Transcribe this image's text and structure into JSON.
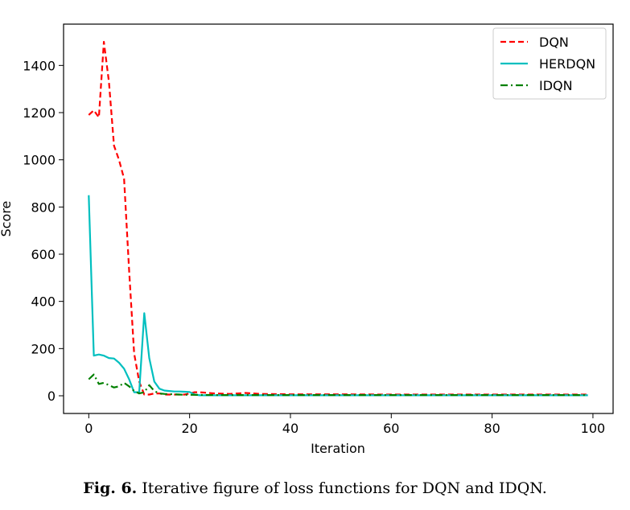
{
  "caption": {
    "label": "Fig. 6.",
    "text": "Iterative figure of loss functions for DQN and IDQN."
  },
  "chart_data": {
    "type": "line",
    "title": "",
    "xlabel": "Iteration",
    "ylabel": "Score",
    "xlim": [
      -5,
      104
    ],
    "ylim": [
      -75,
      1575
    ],
    "xticks": [
      0,
      20,
      40,
      60,
      80,
      100
    ],
    "yticks": [
      0,
      200,
      400,
      600,
      800,
      1000,
      1200,
      1400
    ],
    "grid": false,
    "legend_position": "top-right",
    "series": [
      {
        "name": "DQN",
        "color": "#ff0000",
        "style": "dashed",
        "x": [
          0,
          1,
          2,
          3,
          4,
          5,
          6,
          7,
          8,
          9,
          10,
          11,
          12,
          13,
          14,
          15,
          16,
          17,
          18,
          19,
          20,
          21,
          22,
          25,
          28,
          31,
          34,
          40,
          50,
          60,
          70,
          80,
          90,
          99
        ],
        "y": [
          1190,
          1210,
          1180,
          1500,
          1330,
          1060,
          1000,
          920,
          530,
          180,
          60,
          5,
          5,
          10,
          10,
          5,
          5,
          5,
          5,
          5,
          10,
          15,
          15,
          10,
          8,
          12,
          8,
          6,
          6,
          5,
          5,
          5,
          5,
          5
        ]
      },
      {
        "name": "HERDQN",
        "color": "#00bfbf",
        "style": "solid",
        "x": [
          0,
          1,
          2,
          3,
          4,
          5,
          6,
          7,
          8,
          9,
          10,
          11,
          12,
          13,
          14,
          15,
          16,
          17,
          18,
          19,
          20,
          21,
          22,
          30,
          40,
          50,
          60,
          70,
          80,
          90,
          99
        ],
        "y": [
          850,
          170,
          175,
          170,
          160,
          158,
          140,
          115,
          70,
          15,
          15,
          350,
          160,
          60,
          30,
          22,
          20,
          18,
          18,
          17,
          16,
          5,
          2,
          2,
          2,
          2,
          2,
          2,
          2,
          2,
          2
        ]
      },
      {
        "name": "IDQN",
        "color": "#008000",
        "style": "dashdot",
        "x": [
          0,
          1,
          2,
          3,
          4,
          5,
          6,
          7,
          8,
          9,
          10,
          11,
          12,
          13,
          14,
          15,
          16,
          17,
          18,
          19,
          20,
          25,
          30,
          40,
          50,
          60,
          70,
          80,
          90,
          99
        ],
        "y": [
          70,
          90,
          50,
          55,
          45,
          35,
          40,
          55,
          40,
          20,
          10,
          15,
          45,
          20,
          10,
          8,
          7,
          6,
          5,
          4,
          4,
          3,
          3,
          3,
          3,
          3,
          3,
          3,
          3,
          3
        ]
      }
    ]
  }
}
